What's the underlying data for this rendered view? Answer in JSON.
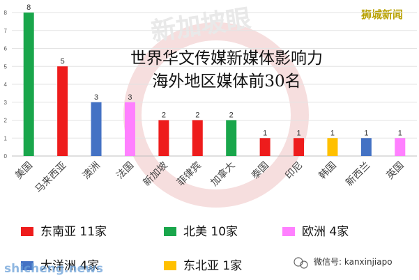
{
  "watermark": "新加坡眼",
  "corner_label": "狮城新闻",
  "footer": {
    "site_watermark": "shicheng.news",
    "wechat_label": "微信号: kanxinjiapo"
  },
  "chart_data": {
    "type": "bar",
    "title": [
      "世界华文传媒新媒体影响力",
      "海外地区媒体前30名"
    ],
    "xlabel": "",
    "ylabel": "",
    "ylim": [
      0,
      8
    ],
    "yticks": [
      0,
      1,
      2,
      3,
      4,
      5,
      6,
      7,
      8
    ],
    "grid": true,
    "legend_position": "bottom",
    "categories": [
      "美国",
      "马来西亚",
      "澳洲",
      "法国",
      "新加坡",
      "菲律宾",
      "加拿大",
      "泰国",
      "印尼",
      "韩国",
      "新西兰",
      "英国"
    ],
    "values": [
      8,
      5,
      3,
      3,
      2,
      2,
      2,
      1,
      1,
      1,
      1,
      1
    ],
    "bar_colors": [
      "#19a64b",
      "#ee1c1c",
      "#4472c4",
      "#ff80ff",
      "#ee1c1c",
      "#ee1c1c",
      "#19a64b",
      "#ee1c1c",
      "#ee1c1c",
      "#ffc000",
      "#4472c4",
      "#ff80ff"
    ],
    "legend": [
      {
        "label": "东南亚 11家",
        "color": "#ee1c1c"
      },
      {
        "label": "北美 10家",
        "color": "#19a64b"
      },
      {
        "label": "欧洲 4家",
        "color": "#ff80ff"
      },
      {
        "label": "大洋洲 4家",
        "color": "#4472c4"
      },
      {
        "label": "东北亚 1家",
        "color": "#ffc000"
      }
    ]
  }
}
